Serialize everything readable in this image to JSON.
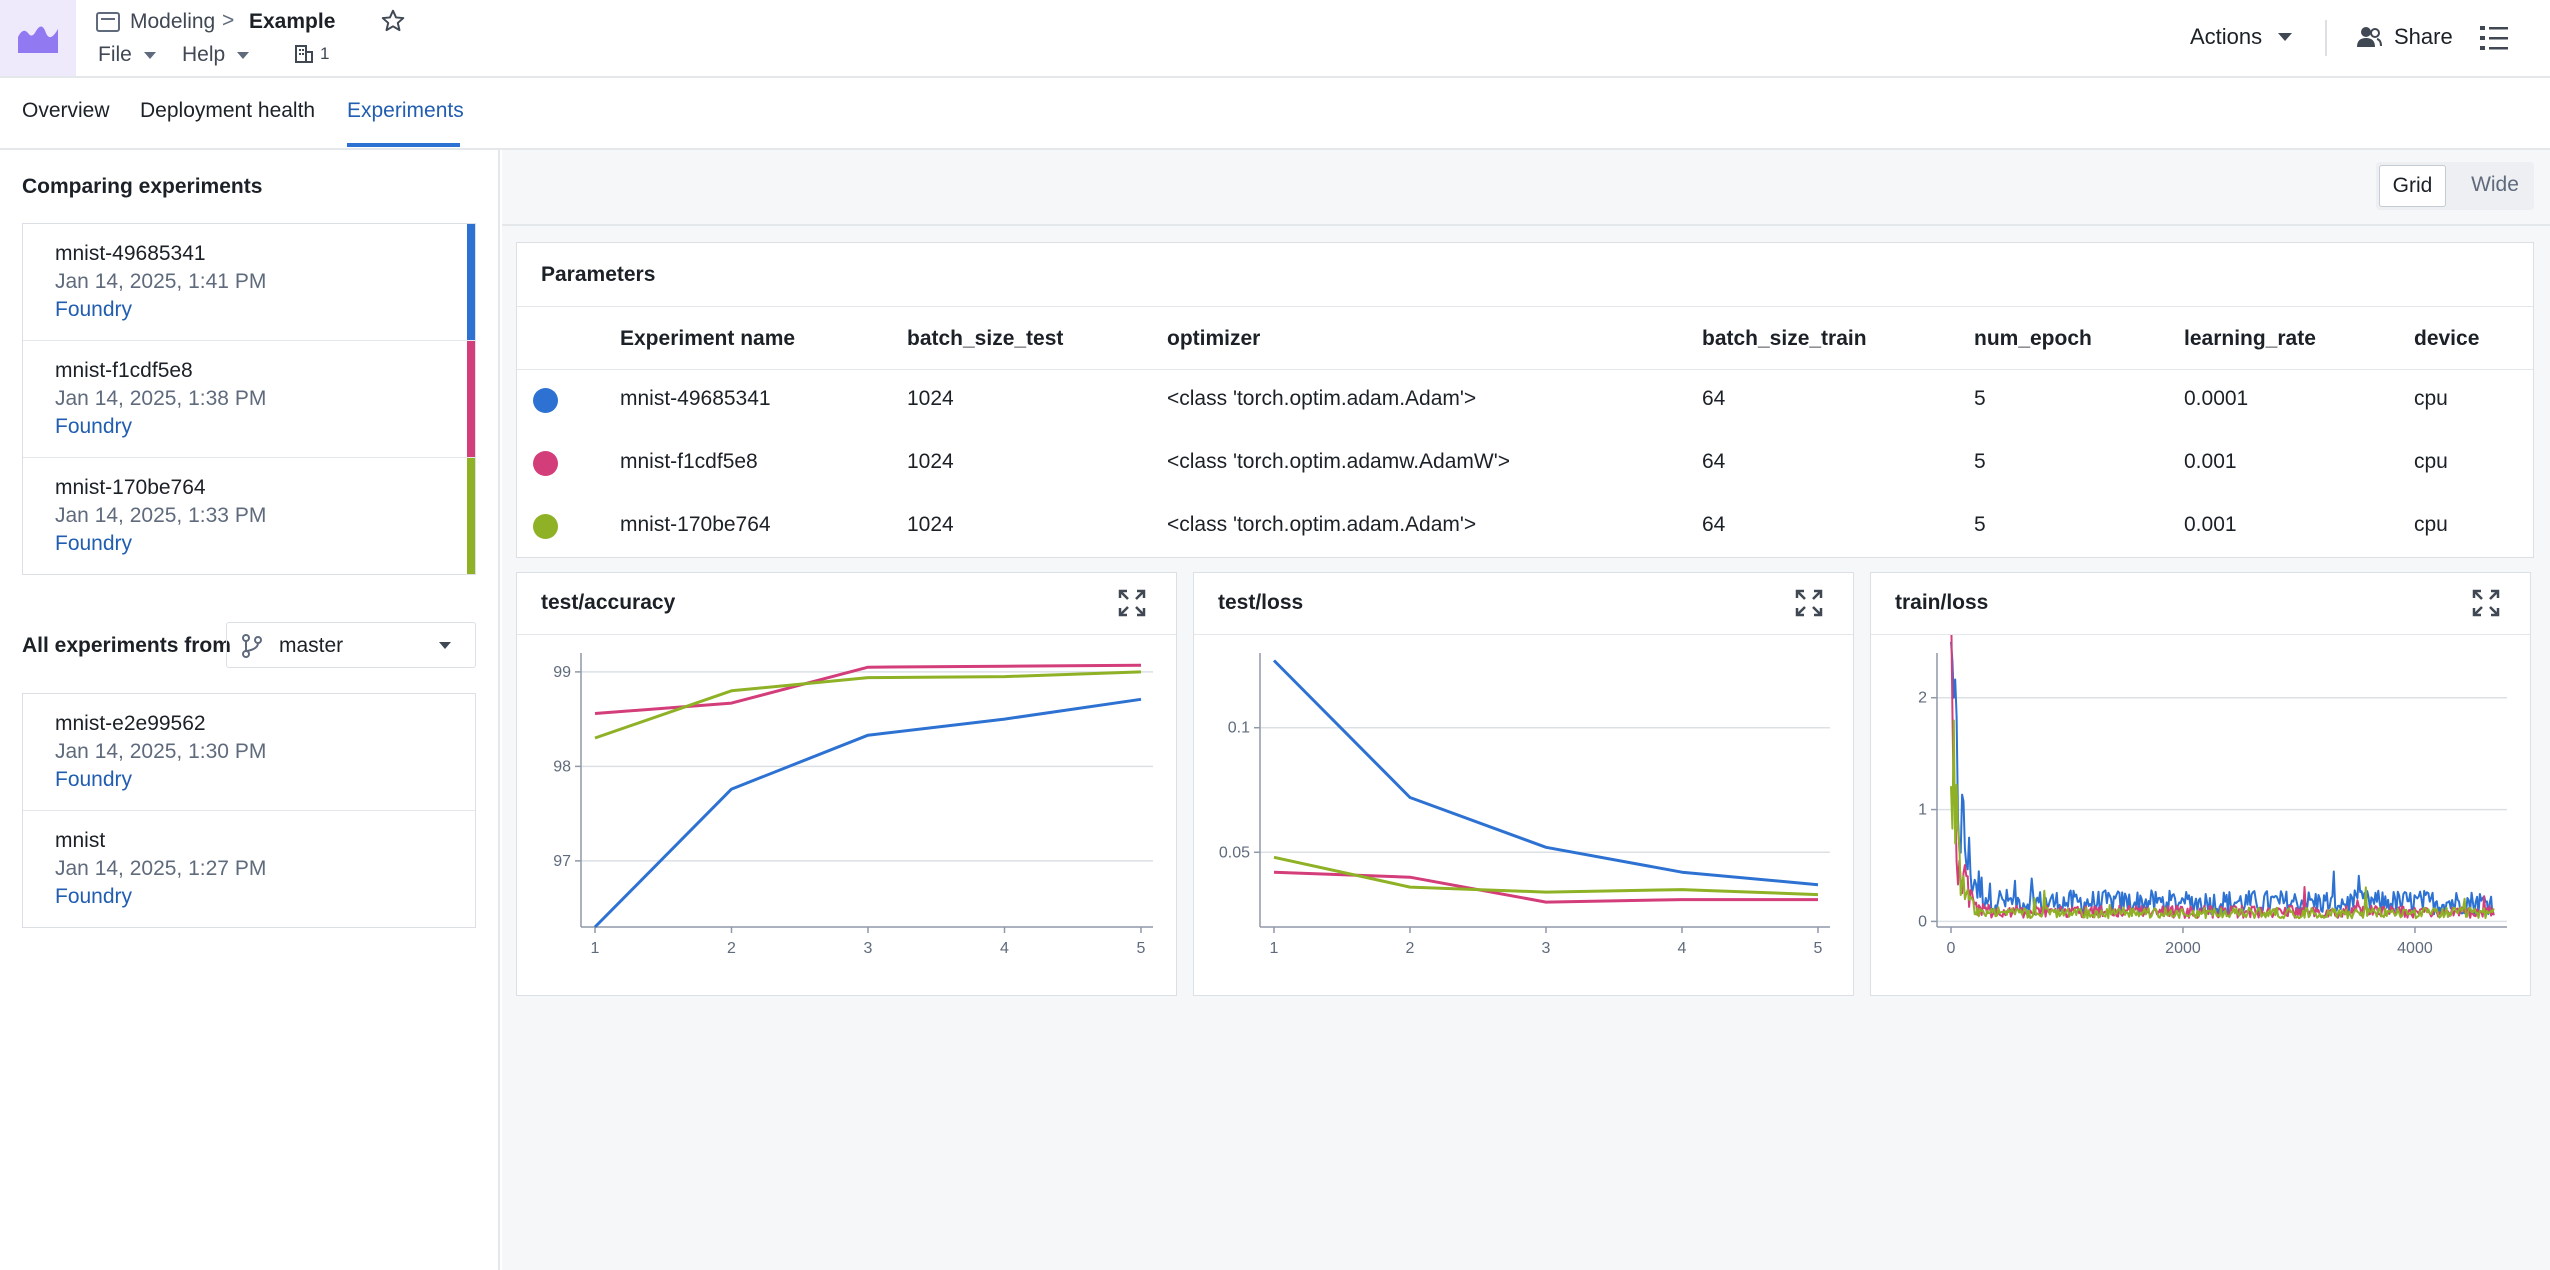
{
  "header": {
    "breadcrumb_parent": "Modeling",
    "breadcrumb_separator": ">",
    "title": "Example",
    "menus": [
      {
        "label": "File"
      },
      {
        "label": "Help"
      }
    ],
    "building_count": "1",
    "actions_label": "Actions",
    "share_label": "Share"
  },
  "tabs": [
    {
      "label": "Overview"
    },
    {
      "label": "Deployment health"
    },
    {
      "label": "Experiments",
      "active": true
    }
  ],
  "sidebar": {
    "comparing_heading": "Comparing experiments",
    "comparing": [
      {
        "name": "mnist-49685341",
        "date": "Jan 14, 2025, 1:41 PM",
        "source": "Foundry",
        "color": "#2d72d2"
      },
      {
        "name": "mnist-f1cdf5e8",
        "date": "Jan 14, 2025, 1:38 PM",
        "source": "Foundry",
        "color": "#d33d7a"
      },
      {
        "name": "mnist-170be764",
        "date": "Jan 14, 2025, 1:33 PM",
        "source": "Foundry",
        "color": "#8eb125"
      }
    ],
    "all_from_label": "All experiments from",
    "branch": "master",
    "all": [
      {
        "name": "mnist-e2e99562",
        "date": "Jan 14, 2025, 1:30 PM",
        "source": "Foundry"
      },
      {
        "name": "mnist",
        "date": "Jan 14, 2025, 1:27 PM",
        "source": "Foundry"
      }
    ]
  },
  "view_toggle": {
    "grid": "Grid",
    "wide": "Wide",
    "selected": "Grid"
  },
  "parameters": {
    "title": "Parameters",
    "columns": [
      "Experiment name",
      "batch_size_test",
      "optimizer",
      "batch_size_train",
      "num_epoch",
      "learning_rate",
      "device"
    ],
    "rows": [
      {
        "color": "#2d72d2",
        "cells": [
          "mnist-49685341",
          "1024",
          "<class 'torch.optim.adam.Adam'>",
          "64",
          "5",
          "0.0001",
          "cpu"
        ]
      },
      {
        "color": "#d33d7a",
        "cells": [
          "mnist-f1cdf5e8",
          "1024",
          "<class 'torch.optim.adamw.AdamW'>",
          "64",
          "5",
          "0.001",
          "cpu"
        ]
      },
      {
        "color": "#8eb125",
        "cells": [
          "mnist-170be764",
          "1024",
          "<class 'torch.optim.adam.Adam'>",
          "64",
          "5",
          "0.001",
          "cpu"
        ]
      }
    ]
  },
  "chart_data": [
    {
      "type": "line",
      "title": "test/accuracy",
      "x": [
        1,
        2,
        3,
        4,
        5
      ],
      "xticks": [
        1,
        2,
        3,
        4,
        5
      ],
      "yticks": [
        97,
        98,
        99
      ],
      "ylim": [
        96.3,
        99.2
      ],
      "grid": true,
      "series": [
        {
          "color": "#2d72d2",
          "values": [
            96.3,
            97.76,
            98.33,
            98.5,
            98.71
          ]
        },
        {
          "color": "#d33d7a",
          "values": [
            98.56,
            98.67,
            99.05,
            99.06,
            99.07
          ]
        },
        {
          "color": "#8eb125",
          "values": [
            98.3,
            98.8,
            98.94,
            98.95,
            99.0
          ]
        }
      ]
    },
    {
      "type": "line",
      "title": "test/loss",
      "x": [
        1,
        2,
        3,
        4,
        5
      ],
      "xticks": [
        1,
        2,
        3,
        4,
        5
      ],
      "yticks": [
        0.05,
        0.1
      ],
      "ytick_labels": [
        "0.05",
        "0.1"
      ],
      "ylim": [
        0.02,
        0.13
      ],
      "grid": true,
      "series": [
        {
          "color": "#2d72d2",
          "values": [
            0.127,
            0.072,
            0.052,
            0.042,
            0.037
          ]
        },
        {
          "color": "#d33d7a",
          "values": [
            0.042,
            0.04,
            0.03,
            0.031,
            0.031
          ]
        },
        {
          "color": "#8eb125",
          "values": [
            0.048,
            0.036,
            0.034,
            0.035,
            0.033
          ]
        }
      ]
    },
    {
      "type": "line",
      "title": "train/loss",
      "xticks": [
        0,
        2000,
        4000
      ],
      "yticks": [
        0,
        1,
        2
      ],
      "xlim": [
        0,
        4690
      ],
      "ylim": [
        -0.05,
        2.4
      ],
      "grid": true,
      "series": [
        {
          "color": "#2d72d2",
          "start": 2.2,
          "tail": 0.18,
          "decay": 90
        },
        {
          "color": "#d33d7a",
          "start": 2.0,
          "tail": 0.09,
          "decay": 60
        },
        {
          "color": "#8eb125",
          "start": 2.05,
          "tail": 0.08,
          "decay": 55
        }
      ]
    }
  ]
}
